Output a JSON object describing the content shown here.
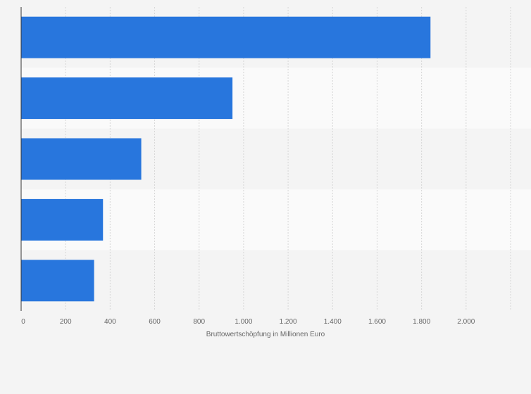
{
  "chart_data": {
    "type": "bar",
    "orientation": "horizontal",
    "title": "",
    "xlabel": "Bruttowertschöpfung in Millionen Euro",
    "ylabel": "",
    "categories": [
      "",
      "",
      "",
      "",
      ""
    ],
    "values": [
      1840,
      950,
      540,
      368,
      328
    ],
    "xlim": [
      0,
      2200
    ],
    "xticks": [
      0,
      200,
      400,
      600,
      800,
      1000,
      1200,
      1400,
      1600,
      1800,
      2000
    ],
    "xtick_labels": [
      "0",
      "200",
      "400",
      "600",
      "800",
      "1.000",
      "1.200",
      "1.400",
      "1.600",
      "1.800",
      "2.000"
    ],
    "grid": true,
    "legend": "none",
    "colors": {
      "bar": "#2876dd",
      "band_dark": "#f4f4f4",
      "band_light": "#fafafa",
      "grid": "#d6d6d6",
      "axis": "#333333",
      "text": "#666666"
    }
  }
}
